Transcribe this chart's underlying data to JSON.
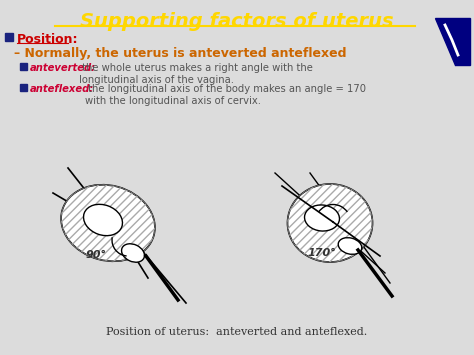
{
  "bg_color": "#dcdcdc",
  "title": "Supporting factors of uterus",
  "title_color": "#FFD700",
  "title_fontsize": 14,
  "position_label": "Position:",
  "position_color": "#cc0000",
  "bullet_color": "#1a237e",
  "subtitle": "Normally, the uterus is anteverted anteflexed",
  "subtitle_color": "#cc6600",
  "bullet1_bold": "anteverted:",
  "bullet1_rest": " the whole uterus makes a right angle with the\nlongitudinal axis of the vagina.",
  "bullet2_bold": "anteflexed:",
  "bullet2_rest": " the longitudinal axis of the body makes an angle = 170\nwith the longitudinal axis of cervix.",
  "bullet_text_color": "#555555",
  "bold_text_color": "#cc0033",
  "caption": "Position of uterus:  anteverted and anteflexed.",
  "caption_color": "#333333",
  "angle1_label": "90°",
  "angle2_label": "170°",
  "angle_label_color": "#333333"
}
